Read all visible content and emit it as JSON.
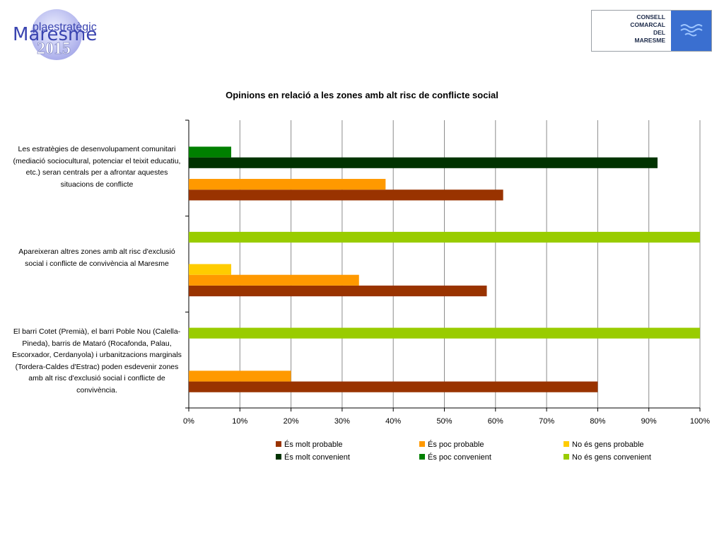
{
  "logo_left": {
    "line1": "plaestratègic",
    "line2": "Maresme",
    "line3": "2015"
  },
  "logo_right": {
    "lines": [
      "CONSELL",
      "COMARCAL",
      "DEL",
      "MARESME"
    ]
  },
  "chart_data": {
    "type": "bar",
    "orientation": "horizontal",
    "title": "Opinions en relació a les zones amb alt risc de conflicte social",
    "xlabel": "",
    "ylabel": "",
    "xlim": [
      0,
      100
    ],
    "x_ticks": [
      "0%",
      "10%",
      "20%",
      "30%",
      "40%",
      "50%",
      "60%",
      "70%",
      "80%",
      "90%",
      "100%"
    ],
    "grid": "vertical",
    "legend_position": "bottom",
    "categories": [
      "Les estratègies de desenvolupament comunitari (mediació sociocultural, potenciar el teixit educatiu, etc.) seran centrals per a afrontar aquestes situacions de conflicte",
      "Apareixeran altres zones amb alt risc d'exclusió social i conflicte de convivència al Maresme",
      "El barri Cotet (Premià), el barri Poble Nou (Calella-Pineda), barris de Mataró (Rocafonda, Palau, Escorxador, Cerdanyola) i urbanitzacions marginals (Tordera-Caldes d'Estrac) poden esdevenir zones amb alt risc d'exclusió social i conflicte de convivència."
    ],
    "series": [
      {
        "name": "És molt probable",
        "color": "#993300",
        "values": [
          61.5,
          58.3,
          80.0
        ]
      },
      {
        "name": "És poc probable",
        "color": "#FF9900",
        "values": [
          38.5,
          33.3,
          20.0
        ]
      },
      {
        "name": "No és gens probable",
        "color": "#FFCC00",
        "values": [
          0,
          8.3,
          0
        ]
      },
      {
        "name": "És molt convenient",
        "color": "#003300",
        "values": [
          91.7,
          0,
          0
        ]
      },
      {
        "name": "És poc convenient",
        "color": "#008000",
        "values": [
          8.3,
          0,
          0
        ]
      },
      {
        "name": "No és gens convenient",
        "color": "#99CC00",
        "values": [
          0,
          100,
          100
        ]
      }
    ]
  }
}
